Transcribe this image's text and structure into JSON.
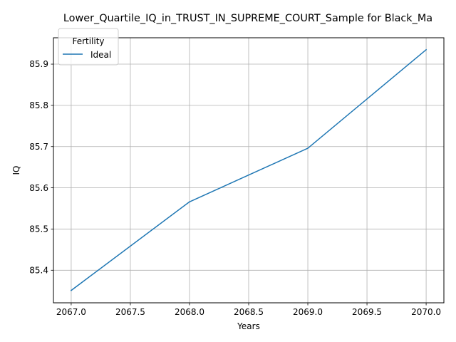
{
  "chart_data": {
    "type": "line",
    "title": "Lower_Quartile_IQ_in_TRUST_IN_SUPREME_COURT_Sample for Black_Ma",
    "xlabel": "Years",
    "ylabel": "IQ",
    "xlim": [
      2066.85,
      2070.15
    ],
    "ylim": [
      85.321,
      85.964
    ],
    "xticks": [
      2067.0,
      2067.5,
      2068.0,
      2068.5,
      2069.0,
      2069.5,
      2070.0
    ],
    "xtick_labels": [
      "2067.0",
      "2067.5",
      "2068.0",
      "2068.5",
      "2069.0",
      "2069.5",
      "2070.0"
    ],
    "yticks": [
      85.4,
      85.5,
      85.6,
      85.7,
      85.8,
      85.9
    ],
    "ytick_labels": [
      "85.4",
      "85.5",
      "85.6",
      "85.7",
      "85.8",
      "85.9"
    ],
    "grid": true,
    "legend": {
      "title": "Fertility",
      "placement": "upper-left"
    },
    "series": [
      {
        "name": "Ideal",
        "color": "#1f77b4",
        "x": [
          2067,
          2068,
          2069,
          2070
        ],
        "y": [
          85.351,
          85.566,
          85.696,
          85.935
        ]
      }
    ]
  }
}
